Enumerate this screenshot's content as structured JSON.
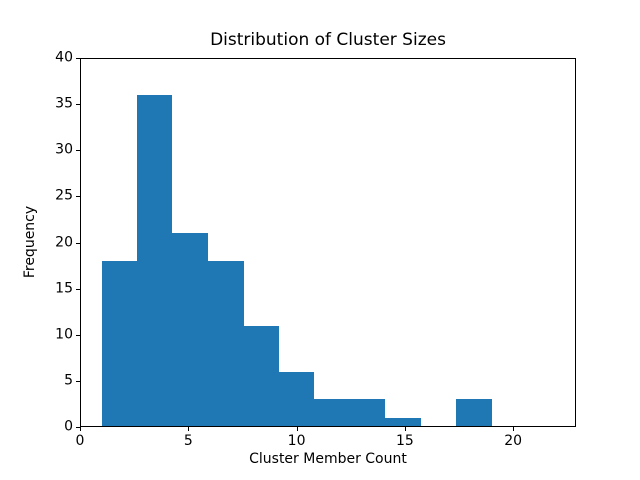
{
  "chart_data": {
    "type": "bar",
    "subtype": "histogram",
    "title": "Distribution of Cluster Sizes",
    "xlabel": "Cluster Member Count",
    "ylabel": "Frequency",
    "bin_edges": [
      1.0,
      2.64,
      4.27,
      5.91,
      7.55,
      9.18,
      10.82,
      12.45,
      14.09,
      15.73,
      17.36,
      19.0
    ],
    "frequencies": [
      18,
      36,
      21,
      18,
      11,
      6,
      3,
      3,
      1,
      0,
      3
    ],
    "xticks": [
      0,
      5,
      10,
      15,
      20
    ],
    "yticks": [
      0,
      5,
      10,
      15,
      20,
      25,
      30,
      35,
      40
    ],
    "xlim": [
      0,
      22.9
    ],
    "ylim": [
      0,
      40
    ],
    "bar_color": "#1f77b4",
    "background_color": "#ffffff",
    "text_color": "#000000",
    "grid": false,
    "legend_position": "none"
  }
}
